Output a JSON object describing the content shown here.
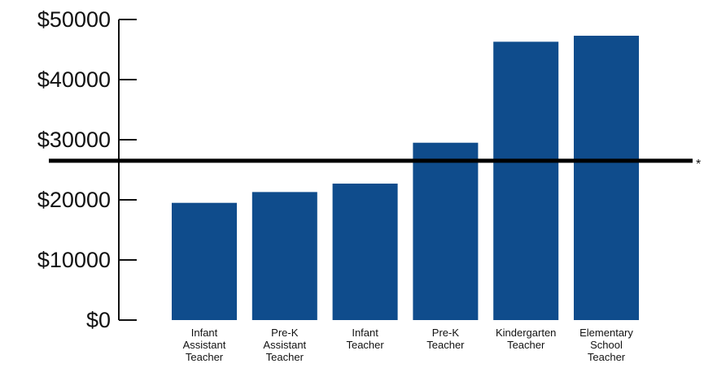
{
  "chart_data": {
    "type": "bar",
    "title": "",
    "xlabel": "",
    "ylabel": "",
    "categories": [
      [
        "Infant",
        "Assistant",
        "Teacher"
      ],
      [
        "Pre-K",
        "Assistant",
        "Teacher"
      ],
      [
        "Infant",
        "Teacher"
      ],
      [
        "Pre-K",
        "Teacher"
      ],
      [
        "Kindergarten",
        "Teacher"
      ],
      [
        "Elementary",
        "School",
        "Teacher"
      ]
    ],
    "values": [
      19500,
      21300,
      22700,
      29500,
      46300,
      47300
    ],
    "ylim": [
      0,
      50000
    ],
    "y_ticks": [
      0,
      10000,
      20000,
      30000,
      40000,
      50000
    ],
    "y_tick_labels": [
      "$0",
      "$10000",
      "$20000",
      "$30000",
      "$40000",
      "$50000"
    ],
    "reference_line": {
      "value": 26500,
      "marker": "*"
    },
    "grid": false,
    "legend": "none",
    "bar_color": "#0f4c8c",
    "axis_color": "#111111",
    "reference_line_color": "#000000"
  }
}
